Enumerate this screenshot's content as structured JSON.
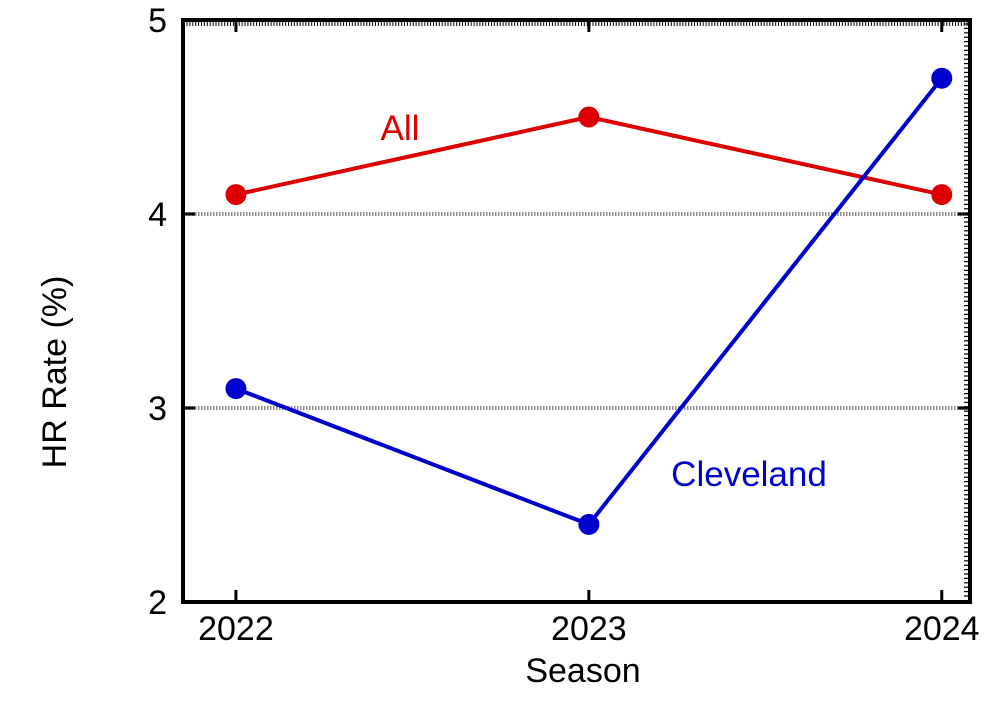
{
  "chart_data": {
    "type": "line",
    "title": "",
    "xlabel": "Season",
    "ylabel": "HR Rate (%)",
    "categories": [
      "2022",
      "2023",
      "2024"
    ],
    "x": [
      2022,
      2023,
      2024
    ],
    "xlim": [
      2021.85,
      2024.08
    ],
    "ylim": [
      2,
      5
    ],
    "yticks": [
      "2",
      "3",
      "4",
      "5"
    ],
    "grid": true,
    "legend": "inline labels",
    "series": [
      {
        "name": "All",
        "values": [
          4.1,
          4.5,
          4.1
        ],
        "color": "#dd0000"
      },
      {
        "name": "Cleveland",
        "values": [
          3.1,
          2.4,
          4.7
        ],
        "color": "#0000cc"
      }
    ]
  }
}
